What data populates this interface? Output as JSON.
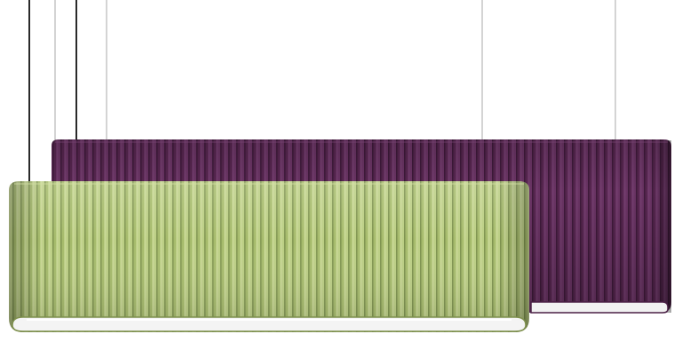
{
  "scene": {
    "background": "#ffffff",
    "objects": [
      {
        "kind": "pendant-light",
        "finish": "ribbed-felt",
        "color": "#5b2a55",
        "diffuser": "#f2f2f2",
        "position": "back"
      },
      {
        "kind": "pendant-light",
        "finish": "ribbed-felt",
        "color": "#b3c77a",
        "diffuser": "#f2f2f2",
        "position": "front"
      }
    ],
    "suspension": {
      "wire_color": "#9a9a9a",
      "cable_color": "#222222"
    }
  }
}
